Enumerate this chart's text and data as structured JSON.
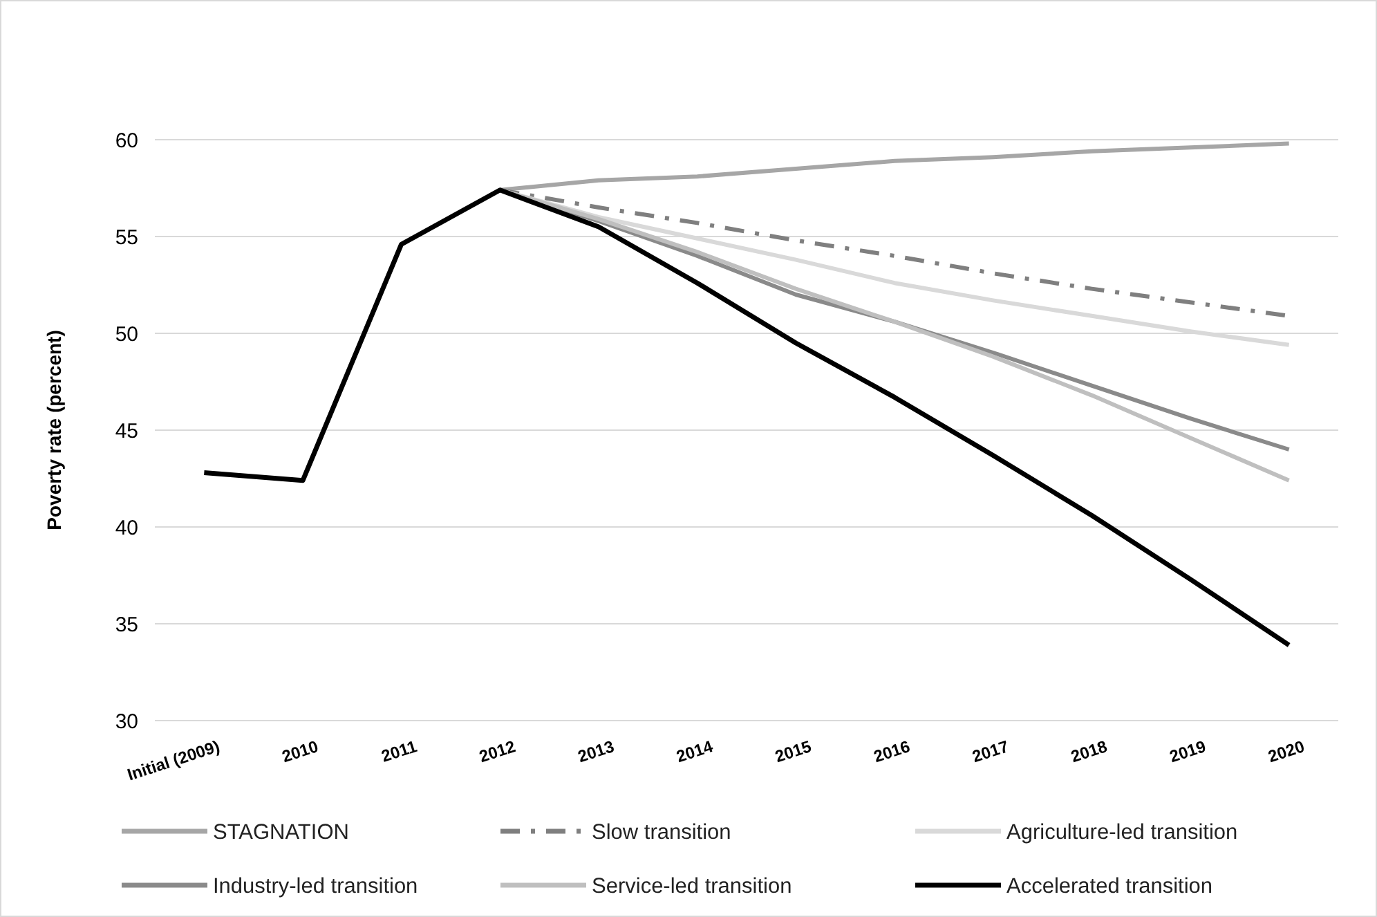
{
  "chart_data": {
    "type": "line",
    "ylabel": "Poverty rate (percent)",
    "categories": [
      "Initial (2009)",
      "2010",
      "2011",
      "2012",
      "2013",
      "2014",
      "2015",
      "2016",
      "2017",
      "2018",
      "2019",
      "2020"
    ],
    "ylim": [
      30,
      60
    ],
    "yticks": [
      30,
      35,
      40,
      45,
      50,
      55,
      60
    ],
    "grid": "y",
    "legend": "bottom",
    "marker": "none",
    "series": [
      {
        "name": "STAGNATION",
        "color": "#a6a6a6",
        "values": [
          null,
          null,
          null,
          57.4,
          57.9,
          58.1,
          58.5,
          58.9,
          59.1,
          59.4,
          59.6,
          59.8
        ]
      },
      {
        "name": "Slow transition",
        "color": "#7f7f7f",
        "line_style": "dashed",
        "values": [
          null,
          null,
          null,
          57.4,
          56.5,
          55.7,
          54.8,
          54.0,
          53.1,
          52.3,
          51.6,
          50.9
        ]
      },
      {
        "name": "Agriculture-led transition",
        "color": "#d9d9d9",
        "values": [
          null,
          null,
          null,
          57.4,
          56.0,
          54.9,
          53.8,
          52.6,
          51.7,
          50.9,
          50.1,
          49.4
        ]
      },
      {
        "name": "Industry-led transition",
        "color": "#8a8a8a",
        "values": [
          null,
          null,
          null,
          57.4,
          55.8,
          54.0,
          52.0,
          50.6,
          49.0,
          47.3,
          45.6,
          44.0
        ]
      },
      {
        "name": "Service-led transition",
        "color": "#bfbfbf",
        "values": [
          null,
          null,
          null,
          57.4,
          55.9,
          54.2,
          52.3,
          50.6,
          48.8,
          46.8,
          44.6,
          42.4
        ]
      },
      {
        "name": "Accelerated transition",
        "color": "#000000",
        "values": [
          42.8,
          42.4,
          54.6,
          57.4,
          55.5,
          52.6,
          49.5,
          46.7,
          43.7,
          40.6,
          37.3,
          33.9
        ]
      }
    ]
  }
}
